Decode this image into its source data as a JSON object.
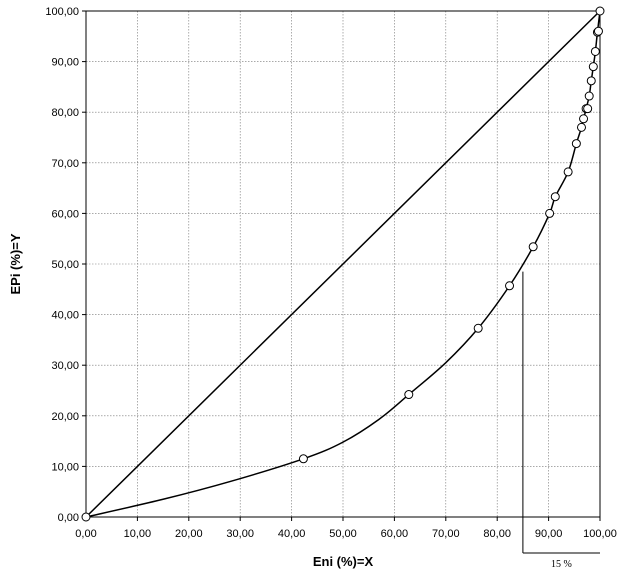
{
  "chart_data": {
    "type": "scatter",
    "xlabel": "Eni (%)=X",
    "ylabel": "EPi (%)=Y",
    "xlim": [
      0,
      100
    ],
    "ylim": [
      0,
      100
    ],
    "x_ticks": [
      "0,00",
      "10,00",
      "20,00",
      "30,00",
      "40,00",
      "50,00",
      "60,00",
      "70,00",
      "80,00",
      "90,00",
      "100,00"
    ],
    "y_ticks": [
      "0,00",
      "10,00",
      "20,00",
      "30,00",
      "40,00",
      "50,00",
      "60,00",
      "70,00",
      "80,00",
      "90,00",
      "100,00"
    ],
    "grid": true,
    "series": [
      {
        "kind": "points",
        "style": "open-circle",
        "points": [
          [
            0,
            0
          ],
          [
            42.3,
            11.5
          ],
          [
            62.8,
            24.2
          ],
          [
            76.3,
            37.3
          ],
          [
            82.4,
            45.7
          ],
          [
            87.0,
            53.4
          ],
          [
            90.2,
            60.0
          ],
          [
            91.3,
            63.3
          ],
          [
            93.8,
            68.2
          ],
          [
            95.4,
            73.8
          ],
          [
            96.4,
            77.0
          ],
          [
            96.8,
            78.7
          ],
          [
            97.3,
            80.7
          ],
          [
            97.6,
            80.7
          ],
          [
            97.9,
            83.2
          ],
          [
            98.3,
            86.2
          ],
          [
            98.7,
            89.0
          ],
          [
            99.1,
            92.0
          ],
          [
            99.5,
            95.8
          ],
          [
            99.7,
            96.0
          ],
          [
            100,
            100
          ]
        ]
      },
      {
        "kind": "curve",
        "points": [
          [
            0,
            0
          ],
          [
            15,
            3.5
          ],
          [
            28,
            7
          ],
          [
            42.3,
            11.5
          ],
          [
            50,
            14.8
          ],
          [
            57,
            19.3
          ],
          [
            62.8,
            24.2
          ],
          [
            70,
            30.5
          ],
          [
            76.3,
            37.3
          ],
          [
            82.4,
            45.7
          ],
          [
            87.0,
            53.4
          ],
          [
            90.2,
            60.0
          ],
          [
            91.3,
            63.3
          ],
          [
            93.8,
            68.2
          ],
          [
            95.4,
            73.8
          ],
          [
            96.4,
            77.0
          ],
          [
            97.3,
            80.7
          ],
          [
            97.9,
            83.2
          ],
          [
            98.3,
            86.2
          ],
          [
            98.7,
            89.0
          ],
          [
            99.1,
            92.0
          ],
          [
            99.5,
            95.8
          ],
          [
            100,
            100
          ]
        ]
      },
      {
        "kind": "diagonal",
        "points": [
          [
            0,
            0
          ],
          [
            100,
            100
          ]
        ]
      }
    ],
    "annotation": {
      "label": "15 %",
      "x": 85,
      "y": 48.5
    }
  }
}
